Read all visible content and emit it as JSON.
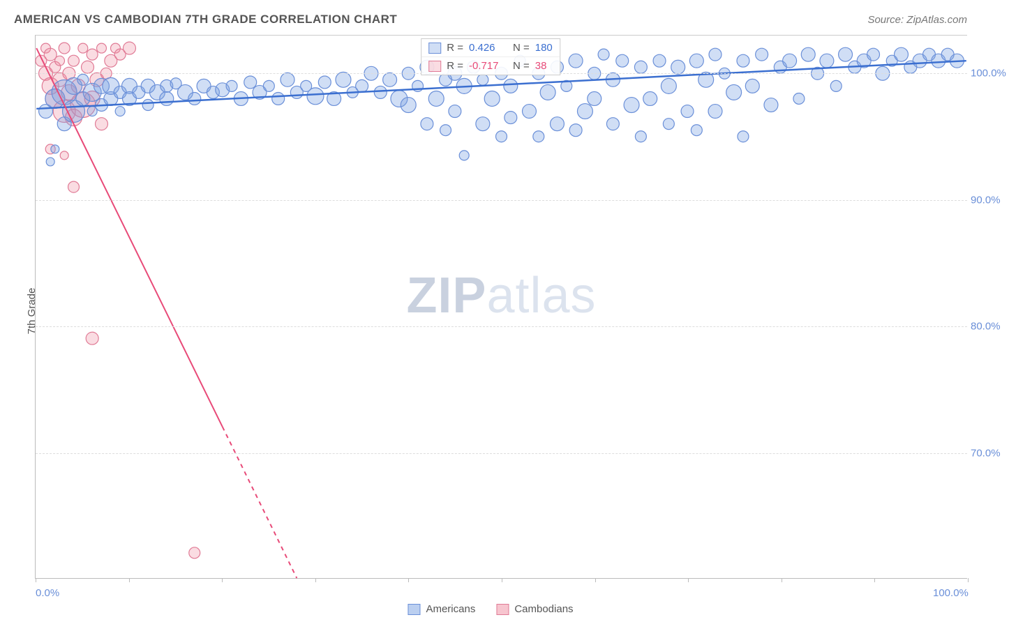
{
  "header": {
    "title": "AMERICAN VS CAMBODIAN 7TH GRADE CORRELATION CHART",
    "source": "Source: ZipAtlas.com"
  },
  "chart": {
    "type": "scatter",
    "y_axis_label": "7th Grade",
    "watermark_zip": "ZIP",
    "watermark_atlas": "atlas",
    "xlim": [
      0,
      100
    ],
    "ylim": [
      60,
      103
    ],
    "x_ticks": [
      0,
      10,
      20,
      30,
      40,
      50,
      60,
      70,
      80,
      90,
      100
    ],
    "x_tick_labels": {
      "0": "0.0%",
      "100": "100.0%"
    },
    "y_ticks": [
      70,
      80,
      90,
      100
    ],
    "y_tick_labels": [
      "70.0%",
      "80.0%",
      "90.0%",
      "100.0%"
    ],
    "grid_color": "#dddddd",
    "background_color": "#ffffff",
    "series": [
      {
        "name": "Americans",
        "label": "Americans",
        "color_fill": "rgba(120,160,225,0.35)",
        "color_stroke": "#6a8fd8",
        "color_hex": "#8ab0e8",
        "trend": {
          "x1": 0,
          "y1": 97.2,
          "x2": 100,
          "y2": 101.0,
          "stroke": "#3b6fd0",
          "width": 2.5,
          "dash": "none"
        },
        "stats": {
          "R_label": "R =",
          "R": "0.426",
          "N_label": "N =",
          "N": "180",
          "value_color": "#3b6fd0"
        },
        "points": [
          {
            "x": 1,
            "y": 97,
            "r": 10
          },
          {
            "x": 1.5,
            "y": 93,
            "r": 6
          },
          {
            "x": 2,
            "y": 94,
            "r": 6
          },
          {
            "x": 2,
            "y": 98,
            "r": 14
          },
          {
            "x": 3,
            "y": 98.5,
            "r": 18
          },
          {
            "x": 3,
            "y": 96,
            "r": 10
          },
          {
            "x": 4,
            "y": 99,
            "r": 12
          },
          {
            "x": 4,
            "y": 97,
            "r": 16
          },
          {
            "x": 5,
            "y": 98,
            "r": 10
          },
          {
            "x": 5,
            "y": 99.5,
            "r": 8
          },
          {
            "x": 6,
            "y": 98.5,
            "r": 13
          },
          {
            "x": 6,
            "y": 97,
            "r": 7
          },
          {
            "x": 7,
            "y": 99,
            "r": 11
          },
          {
            "x": 7,
            "y": 97.5,
            "r": 9
          },
          {
            "x": 8,
            "y": 98,
            "r": 10
          },
          {
            "x": 8,
            "y": 99,
            "r": 12
          },
          {
            "x": 9,
            "y": 98.5,
            "r": 9
          },
          {
            "x": 9,
            "y": 97,
            "r": 7
          },
          {
            "x": 10,
            "y": 99,
            "r": 11
          },
          {
            "x": 10,
            "y": 98,
            "r": 10
          },
          {
            "x": 11,
            "y": 98.5,
            "r": 9
          },
          {
            "x": 12,
            "y": 99,
            "r": 10
          },
          {
            "x": 12,
            "y": 97.5,
            "r": 8
          },
          {
            "x": 13,
            "y": 98.5,
            "r": 11
          },
          {
            "x": 14,
            "y": 99,
            "r": 9
          },
          {
            "x": 14,
            "y": 98,
            "r": 10
          },
          {
            "x": 15,
            "y": 99.2,
            "r": 8
          },
          {
            "x": 16,
            "y": 98.5,
            "r": 11
          },
          {
            "x": 17,
            "y": 98,
            "r": 9
          },
          {
            "x": 18,
            "y": 99,
            "r": 10
          },
          {
            "x": 19,
            "y": 98.5,
            "r": 9
          },
          {
            "x": 20,
            "y": 98.7,
            "r": 10
          },
          {
            "x": 21,
            "y": 99,
            "r": 8
          },
          {
            "x": 22,
            "y": 98,
            "r": 10
          },
          {
            "x": 23,
            "y": 99.3,
            "r": 9
          },
          {
            "x": 24,
            "y": 98.5,
            "r": 10
          },
          {
            "x": 25,
            "y": 99,
            "r": 8
          },
          {
            "x": 26,
            "y": 98,
            "r": 9
          },
          {
            "x": 27,
            "y": 99.5,
            "r": 10
          },
          {
            "x": 28,
            "y": 98.5,
            "r": 9
          },
          {
            "x": 29,
            "y": 99,
            "r": 8
          },
          {
            "x": 30,
            "y": 98.2,
            "r": 12
          },
          {
            "x": 31,
            "y": 99.3,
            "r": 9
          },
          {
            "x": 32,
            "y": 98,
            "r": 10
          },
          {
            "x": 33,
            "y": 99.5,
            "r": 11
          },
          {
            "x": 34,
            "y": 98.5,
            "r": 8
          },
          {
            "x": 35,
            "y": 99,
            "r": 9
          },
          {
            "x": 36,
            "y": 100,
            "r": 10
          },
          {
            "x": 37,
            "y": 98.5,
            "r": 9
          },
          {
            "x": 38,
            "y": 99.5,
            "r": 10
          },
          {
            "x": 39,
            "y": 98,
            "r": 12
          },
          {
            "x": 40,
            "y": 100,
            "r": 9
          },
          {
            "x": 40,
            "y": 97.5,
            "r": 11
          },
          {
            "x": 41,
            "y": 99,
            "r": 8
          },
          {
            "x": 42,
            "y": 100.5,
            "r": 10
          },
          {
            "x": 42,
            "y": 96,
            "r": 9
          },
          {
            "x": 43,
            "y": 98,
            "r": 11
          },
          {
            "x": 44,
            "y": 99.5,
            "r": 9
          },
          {
            "x": 44,
            "y": 95.5,
            "r": 8
          },
          {
            "x": 45,
            "y": 100,
            "r": 10
          },
          {
            "x": 45,
            "y": 97,
            "r": 9
          },
          {
            "x": 46,
            "y": 99,
            "r": 11
          },
          {
            "x": 46,
            "y": 93.5,
            "r": 7
          },
          {
            "x": 47,
            "y": 100.5,
            "r": 9
          },
          {
            "x": 48,
            "y": 96,
            "r": 10
          },
          {
            "x": 48,
            "y": 99.5,
            "r": 8
          },
          {
            "x": 49,
            "y": 98,
            "r": 11
          },
          {
            "x": 50,
            "y": 100,
            "r": 9
          },
          {
            "x": 50,
            "y": 95,
            "r": 8
          },
          {
            "x": 51,
            "y": 99,
            "r": 10
          },
          {
            "x": 51,
            "y": 96.5,
            "r": 9
          },
          {
            "x": 52,
            "y": 101,
            "r": 8
          },
          {
            "x": 53,
            "y": 97,
            "r": 10
          },
          {
            "x": 54,
            "y": 100,
            "r": 9
          },
          {
            "x": 54,
            "y": 95,
            "r": 8
          },
          {
            "x": 55,
            "y": 98.5,
            "r": 11
          },
          {
            "x": 56,
            "y": 100.5,
            "r": 9
          },
          {
            "x": 56,
            "y": 96,
            "r": 10
          },
          {
            "x": 57,
            "y": 99,
            "r": 8
          },
          {
            "x": 58,
            "y": 101,
            "r": 10
          },
          {
            "x": 58,
            "y": 95.5,
            "r": 9
          },
          {
            "x": 59,
            "y": 97,
            "r": 11
          },
          {
            "x": 60,
            "y": 100,
            "r": 9
          },
          {
            "x": 60,
            "y": 98,
            "r": 10
          },
          {
            "x": 61,
            "y": 101.5,
            "r": 8
          },
          {
            "x": 62,
            "y": 96,
            "r": 9
          },
          {
            "x": 62,
            "y": 99.5,
            "r": 10
          },
          {
            "x": 63,
            "y": 101,
            "r": 9
          },
          {
            "x": 64,
            "y": 97.5,
            "r": 11
          },
          {
            "x": 65,
            "y": 100.5,
            "r": 9
          },
          {
            "x": 65,
            "y": 95,
            "r": 8
          },
          {
            "x": 66,
            "y": 98,
            "r": 10
          },
          {
            "x": 67,
            "y": 101,
            "r": 9
          },
          {
            "x": 68,
            "y": 99,
            "r": 11
          },
          {
            "x": 68,
            "y": 96,
            "r": 8
          },
          {
            "x": 69,
            "y": 100.5,
            "r": 10
          },
          {
            "x": 70,
            "y": 97,
            "r": 9
          },
          {
            "x": 71,
            "y": 101,
            "r": 10
          },
          {
            "x": 71,
            "y": 95.5,
            "r": 8
          },
          {
            "x": 72,
            "y": 99.5,
            "r": 11
          },
          {
            "x": 73,
            "y": 101.5,
            "r": 9
          },
          {
            "x": 73,
            "y": 97,
            "r": 10
          },
          {
            "x": 74,
            "y": 100,
            "r": 8
          },
          {
            "x": 75,
            "y": 98.5,
            "r": 11
          },
          {
            "x": 76,
            "y": 101,
            "r": 9
          },
          {
            "x": 76,
            "y": 95,
            "r": 8
          },
          {
            "x": 77,
            "y": 99,
            "r": 10
          },
          {
            "x": 78,
            "y": 101.5,
            "r": 9
          },
          {
            "x": 79,
            "y": 97.5,
            "r": 10
          },
          {
            "x": 80,
            "y": 100.5,
            "r": 9
          },
          {
            "x": 81,
            "y": 101,
            "r": 10
          },
          {
            "x": 82,
            "y": 98,
            "r": 8
          },
          {
            "x": 83,
            "y": 101.5,
            "r": 10
          },
          {
            "x": 84,
            "y": 100,
            "r": 9
          },
          {
            "x": 85,
            "y": 101,
            "r": 10
          },
          {
            "x": 86,
            "y": 99,
            "r": 8
          },
          {
            "x": 87,
            "y": 101.5,
            "r": 10
          },
          {
            "x": 88,
            "y": 100.5,
            "r": 9
          },
          {
            "x": 89,
            "y": 101,
            "r": 10
          },
          {
            "x": 90,
            "y": 101.5,
            "r": 9
          },
          {
            "x": 91,
            "y": 100,
            "r": 10
          },
          {
            "x": 92,
            "y": 101,
            "r": 8
          },
          {
            "x": 93,
            "y": 101.5,
            "r": 10
          },
          {
            "x": 94,
            "y": 100.5,
            "r": 9
          },
          {
            "x": 95,
            "y": 101,
            "r": 10
          },
          {
            "x": 96,
            "y": 101.5,
            "r": 9
          },
          {
            "x": 97,
            "y": 101,
            "r": 10
          },
          {
            "x": 98,
            "y": 101.5,
            "r": 9
          },
          {
            "x": 99,
            "y": 101,
            "r": 10
          }
        ]
      },
      {
        "name": "Cambodians",
        "label": "Cambodians",
        "color_fill": "rgba(240,140,160,0.3)",
        "color_stroke": "#e07a95",
        "color_hex": "#f0a8b8",
        "trend": {
          "x1": 0,
          "y1": 102,
          "x2": 28,
          "y2": 60,
          "stroke": "#e84a78",
          "width": 2,
          "dash_after_x": 20
        },
        "stats": {
          "R_label": "R =",
          "R": "-0.717",
          "N_label": "N =",
          "N": "38",
          "value_color": "#e84a78"
        },
        "points": [
          {
            "x": 0.5,
            "y": 101,
            "r": 8
          },
          {
            "x": 1,
            "y": 100,
            "r": 10
          },
          {
            "x": 1,
            "y": 102,
            "r": 7
          },
          {
            "x": 1.5,
            "y": 101.5,
            "r": 9
          },
          {
            "x": 1.5,
            "y": 99,
            "r": 12
          },
          {
            "x": 2,
            "y": 100.5,
            "r": 8
          },
          {
            "x": 2,
            "y": 98,
            "r": 14
          },
          {
            "x": 2.5,
            "y": 101,
            "r": 7
          },
          {
            "x": 2.5,
            "y": 99.5,
            "r": 10
          },
          {
            "x": 3,
            "y": 102,
            "r": 8
          },
          {
            "x": 3,
            "y": 97,
            "r": 16
          },
          {
            "x": 3.5,
            "y": 100,
            "r": 9
          },
          {
            "x": 3.5,
            "y": 98.5,
            "r": 11
          },
          {
            "x": 4,
            "y": 101,
            "r": 8
          },
          {
            "x": 4,
            "y": 96.5,
            "r": 12
          },
          {
            "x": 4.5,
            "y": 99,
            "r": 10
          },
          {
            "x": 5,
            "y": 102,
            "r": 7
          },
          {
            "x": 5,
            "y": 97.5,
            "r": 18
          },
          {
            "x": 5.5,
            "y": 100.5,
            "r": 9
          },
          {
            "x": 6,
            "y": 101.5,
            "r": 8
          },
          {
            "x": 6,
            "y": 98,
            "r": 11
          },
          {
            "x": 6.5,
            "y": 99.5,
            "r": 10
          },
          {
            "x": 7,
            "y": 102,
            "r": 7
          },
          {
            "x": 7,
            "y": 96,
            "r": 9
          },
          {
            "x": 7.5,
            "y": 100,
            "r": 8
          },
          {
            "x": 8,
            "y": 101,
            "r": 9
          },
          {
            "x": 8.5,
            "y": 102,
            "r": 7
          },
          {
            "x": 9,
            "y": 101.5,
            "r": 8
          },
          {
            "x": 10,
            "y": 102,
            "r": 9
          },
          {
            "x": 1.5,
            "y": 94,
            "r": 7
          },
          {
            "x": 3,
            "y": 93.5,
            "r": 6
          },
          {
            "x": 4,
            "y": 91,
            "r": 8
          },
          {
            "x": 6,
            "y": 79,
            "r": 9
          },
          {
            "x": 17,
            "y": 62,
            "r": 8
          }
        ]
      }
    ]
  },
  "legend": {
    "items": [
      {
        "label": "Americans",
        "fill": "rgba(120,160,225,0.5)",
        "stroke": "#6a8fd8"
      },
      {
        "label": "Cambodians",
        "fill": "rgba(240,140,160,0.5)",
        "stroke": "#e07a95"
      }
    ]
  }
}
